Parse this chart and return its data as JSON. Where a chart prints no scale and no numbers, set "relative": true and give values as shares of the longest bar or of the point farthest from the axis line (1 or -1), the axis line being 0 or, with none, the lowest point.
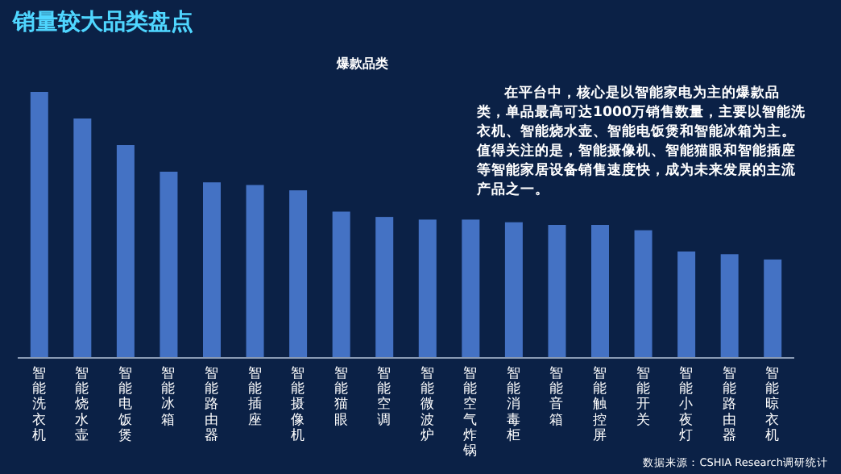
{
  "chart_data": {
    "type": "bar",
    "title": "销量较大品类盘点",
    "subtitle": "爆款品类",
    "relative": true,
    "color": "#4472c4",
    "categories": [
      "智能洗衣机",
      "智能烧水壶",
      "智能电饭煲",
      "智能冰箱",
      "智能路由器",
      "智能插座",
      "智能摄像机",
      "智能猫眼",
      "智能空调",
      "智能微波炉",
      "智能空气炸锅",
      "智能消毒柜",
      "智能音箱",
      "智能触控屏",
      "智能开关",
      "智能小夜灯",
      "智能路由器",
      "智能晾衣机"
    ],
    "values": [
      1,
      0.9,
      0.8,
      0.7,
      0.66,
      0.65,
      0.63,
      0.55,
      0.53,
      0.52,
      0.52,
      0.51,
      0.5,
      0.5,
      0.48,
      0.4,
      0.39,
      0.37
    ],
    "annotations": [
      "在平台中，核心是以智能家电为主的爆款品类，单品最高可达1000万销售数量，主要以智能洗衣机、智能烧水壶、智能电饭煲和智能冰箱为主。值得关注的是，智能摄像机、智能猫眼和智能插座等智能家居设备销售速度快，成为未来发展的主流产品之一。",
      "数据来源：CSHIA Research调研统计"
    ]
  }
}
